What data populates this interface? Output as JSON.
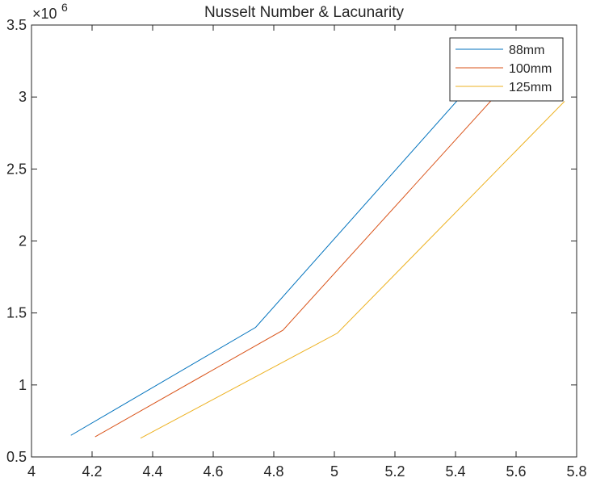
{
  "chart_data": {
    "type": "line",
    "title": "Nusselt Number & Lacunarity",
    "xlabel": "",
    "ylabel": "",
    "xlim": [
      4,
      5.8
    ],
    "ylim": [
      0.5,
      3.5
    ],
    "y_exponent_label": "×10",
    "y_exponent_power": "6",
    "x_ticks": [
      4,
      4.2,
      4.4,
      4.6,
      4.8,
      5,
      5.2,
      5.4,
      5.6,
      5.8
    ],
    "x_tick_labels": [
      "4",
      "4.2",
      "4.4",
      "4.6",
      "4.8",
      "5",
      "5.2",
      "5.4",
      "5.6",
      "5.8"
    ],
    "y_ticks": [
      0.5,
      1,
      1.5,
      2,
      2.5,
      3,
      3.5
    ],
    "y_tick_labels": [
      "0.5",
      "1",
      "1.5",
      "2",
      "2.5",
      "3",
      "3.5"
    ],
    "grid": false,
    "legend_position": "top-right",
    "series": [
      {
        "name": "88mm",
        "color": "#0072BD",
        "x": [
          4.13,
          4.74,
          5.45
        ],
        "y": [
          0.65,
          1.4,
          3.08
        ]
      },
      {
        "name": "100mm",
        "color": "#D95319",
        "x": [
          4.21,
          4.83,
          5.55
        ],
        "y": [
          0.64,
          1.38,
          3.05
        ]
      },
      {
        "name": "125mm",
        "color": "#EDB120",
        "x": [
          4.36,
          5.01,
          5.76
        ],
        "y": [
          0.63,
          1.36,
          2.97
        ]
      }
    ]
  }
}
